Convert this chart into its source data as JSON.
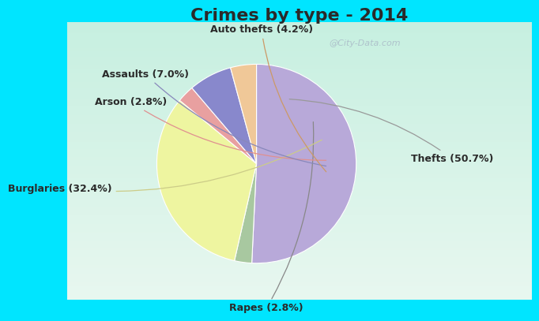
{
  "title": "Crimes by type - 2014",
  "title_fontsize": 16,
  "title_fontweight": "bold",
  "slices": [
    {
      "label": "Thefts (50.7%)",
      "value": 50.7,
      "color": "#b8a9d9"
    },
    {
      "label": "Rapes (2.8%)",
      "value": 2.8,
      "color": "#a8c8a0"
    },
    {
      "label": "Burglaries (32.4%)",
      "value": 32.4,
      "color": "#eef5a0"
    },
    {
      "label": "Arson (2.8%)",
      "value": 2.8,
      "color": "#e8a0a0"
    },
    {
      "label": "Assaults (7.0%)",
      "value": 7.0,
      "color": "#8888cc"
    },
    {
      "label": "Auto thefts (4.2%)",
      "value": 4.2,
      "color": "#f0c898"
    }
  ],
  "bg_cyan": "#00e5ff",
  "bg_inner_top": "#c8e8d8",
  "bg_inner_bottom": "#e8f4ee",
  "watermark": "@City-Data.com",
  "label_fontsize": 9,
  "startangle": 90,
  "title_color": "#2a2a2a",
  "label_color": "#2a2a2a"
}
